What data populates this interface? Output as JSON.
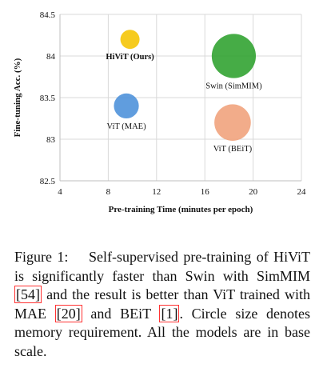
{
  "chart_data": {
    "type": "scatter",
    "bubble": true,
    "xlabel": "Pre-training Time (minutes per epoch)",
    "ylabel": "Fine-tuning Acc. (%)",
    "xlim": [
      4,
      24
    ],
    "ylim": [
      82.5,
      84.5
    ],
    "xticks": [
      "4",
      "8",
      "12",
      "16",
      "20",
      "24"
    ],
    "yticks": [
      "82.5",
      "83",
      "83.5",
      "84",
      "84.5"
    ],
    "grid": true,
    "points": [
      {
        "label": "HiViT (Ours)",
        "x": 9.8,
        "y": 84.2,
        "size": 1.0,
        "color": "#f5c400",
        "bold": true
      },
      {
        "label": "Swin (SimMIM)",
        "x": 18.4,
        "y": 84.0,
        "size": 2.3,
        "color": "#2ca02c",
        "bold": false
      },
      {
        "label": "ViT (MAE)",
        "x": 9.5,
        "y": 83.4,
        "size": 1.3,
        "color": "#4a90d9",
        "bold": false
      },
      {
        "label": "ViT (BEiT)",
        "x": 18.3,
        "y": 83.2,
        "size": 1.9,
        "color": "#f0a07a",
        "bold": false
      }
    ]
  },
  "caption": {
    "prefix": "Figure 1:",
    "text_1": "Self-supervised pre-training of HiViT is significantly faster than Swin with SimMIM ",
    "ref_1": "[54]",
    "text_2": " and the result is better than ViT trained with MAE ",
    "ref_2": "[20]",
    "text_3": " and BEiT ",
    "ref_3": "[1]",
    "text_4": ". Circle size denotes memory requirement. All the models are in base scale."
  }
}
